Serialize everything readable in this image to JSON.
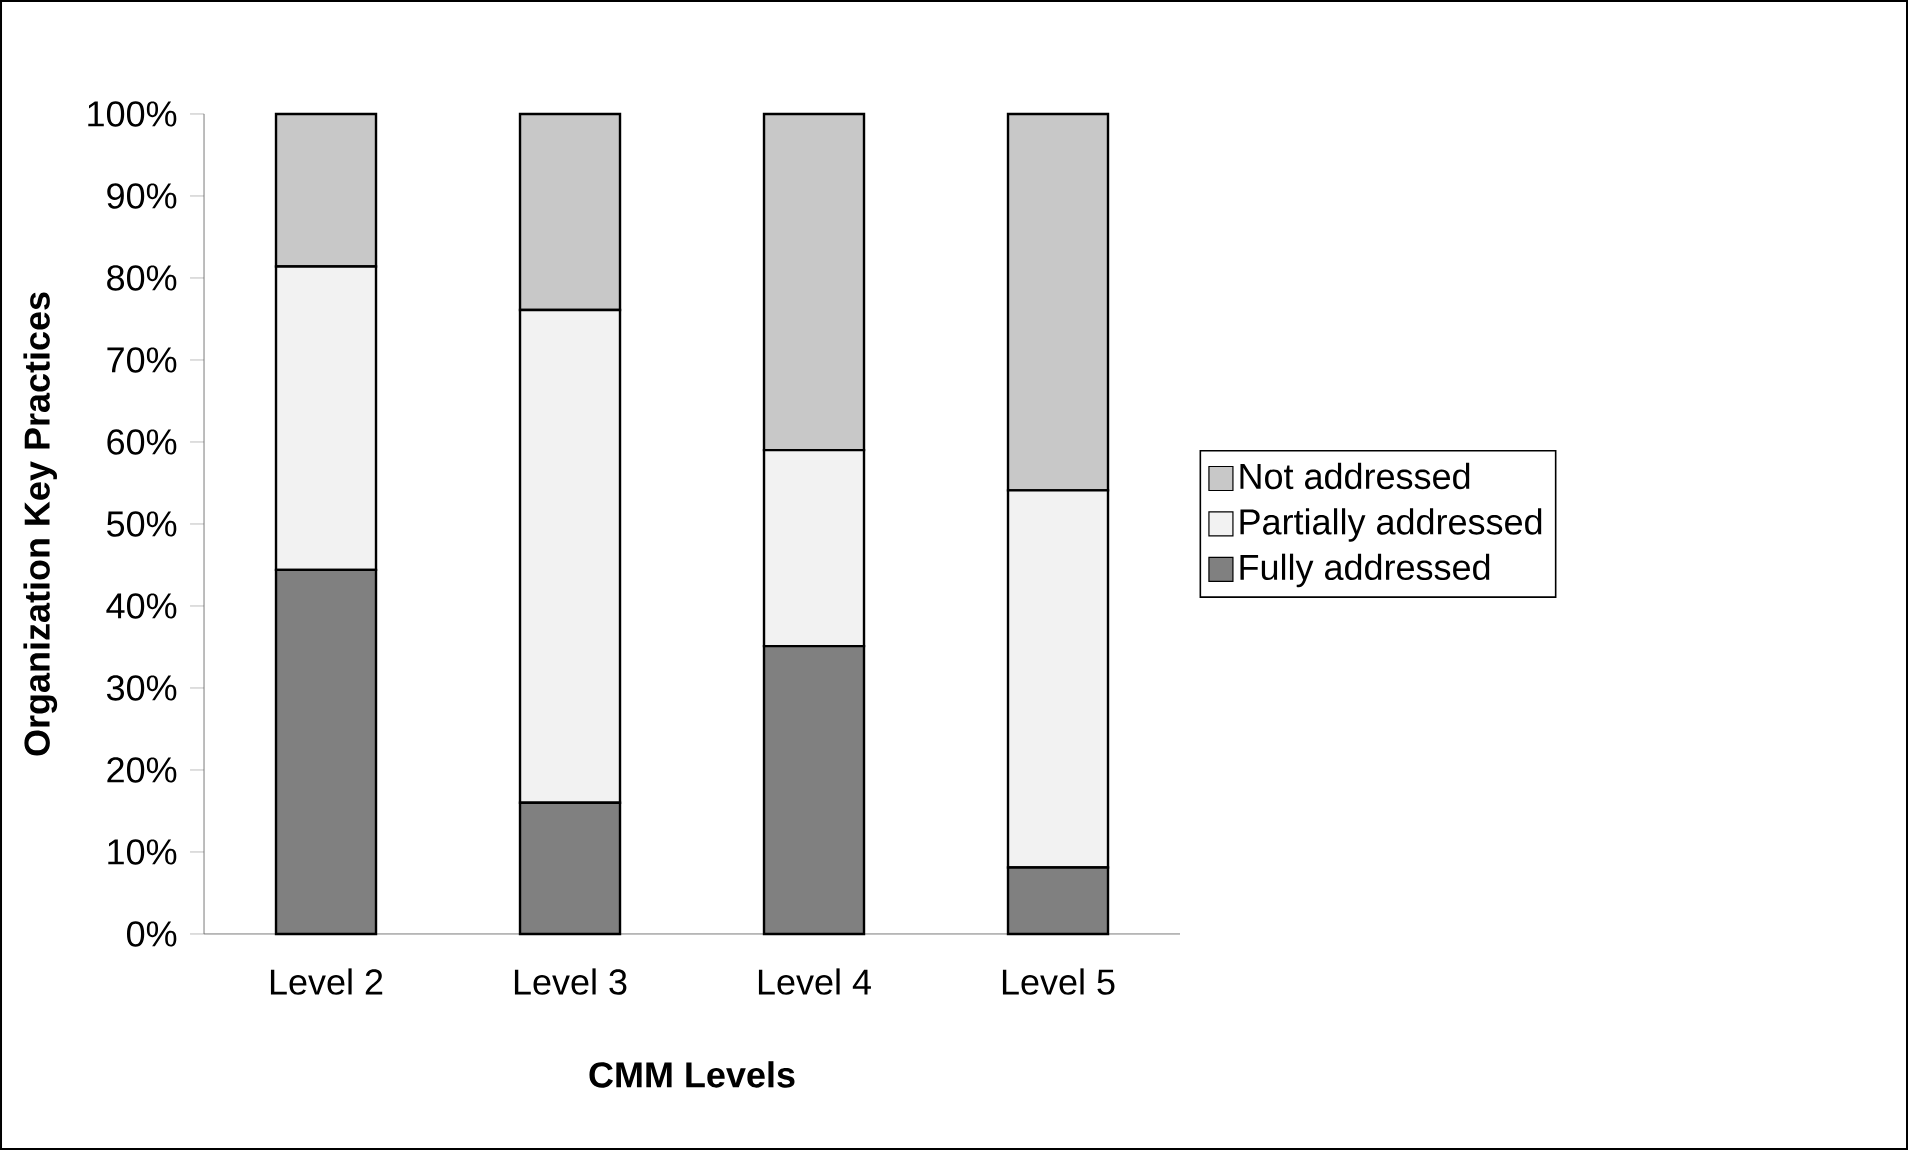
{
  "chart_data": {
    "type": "bar",
    "stacked": true,
    "xlabel": "CMM Levels",
    "ylabel": "Organization Key Practices",
    "categories": [
      "Level 2",
      "Level 3",
      "Level 4",
      "Level 5"
    ],
    "series": [
      {
        "name": "Fully addressed",
        "color": "#808080",
        "values": [
          44.4,
          16.0,
          35.1,
          8.1
        ]
      },
      {
        "name": "Partially addressed",
        "color": "#f2f2f2",
        "values": [
          37.0,
          60.1,
          23.9,
          46.0
        ]
      },
      {
        "name": "Not addressed",
        "color": "#c8c8c8",
        "values": [
          18.6,
          23.9,
          41.0,
          45.9
        ]
      }
    ],
    "ylim": [
      0,
      100
    ],
    "yticks": [
      {
        "value": 0,
        "label": "0%"
      },
      {
        "value": 10,
        "label": "10%"
      },
      {
        "value": 20,
        "label": "20%"
      },
      {
        "value": 30,
        "label": "30%"
      },
      {
        "value": 40,
        "label": "40%"
      },
      {
        "value": 50,
        "label": "50%"
      },
      {
        "value": 60,
        "label": "60%"
      },
      {
        "value": 70,
        "label": "70%"
      },
      {
        "value": 80,
        "label": "80%"
      },
      {
        "value": 90,
        "label": "90%"
      },
      {
        "value": 100,
        "label": "100%"
      }
    ],
    "legend": "right"
  }
}
